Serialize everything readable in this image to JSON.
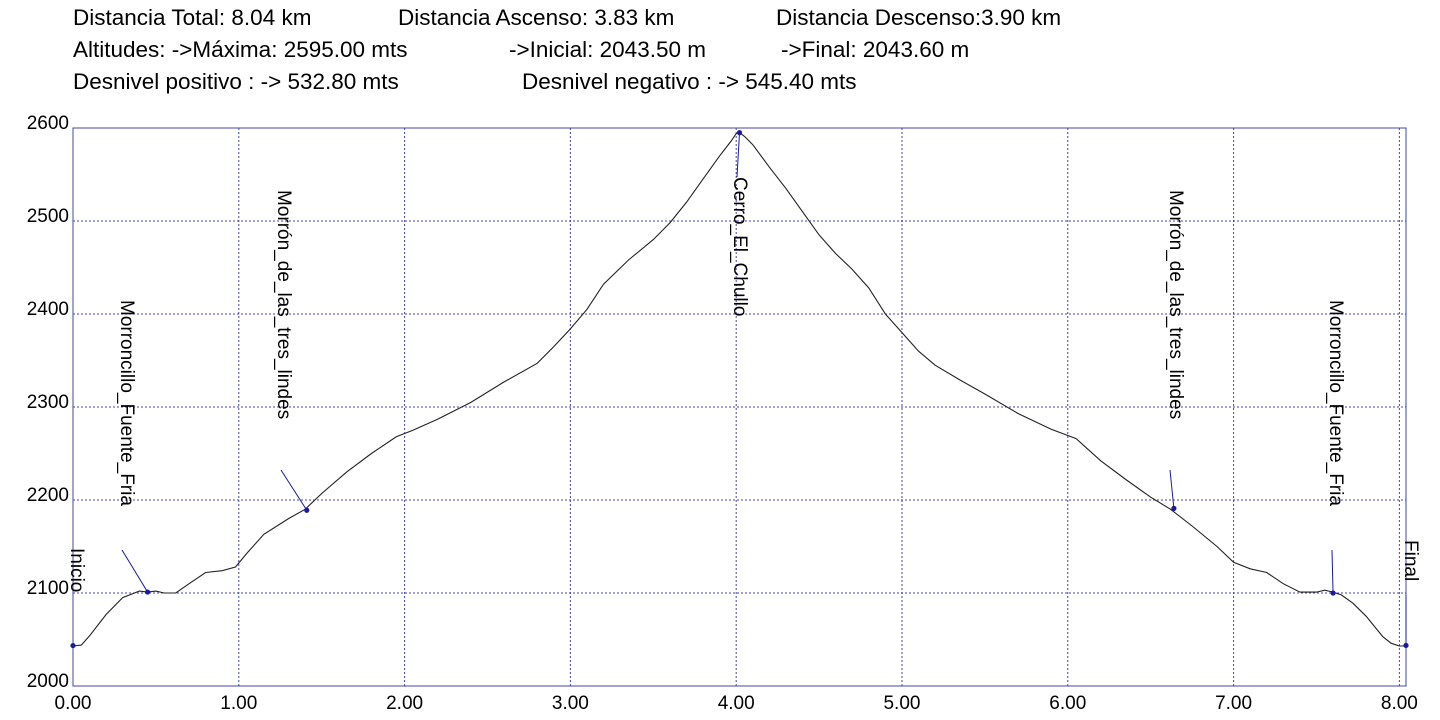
{
  "summary": {
    "line1": [
      "Distancia Total: 8.04 km",
      "Distancia Ascenso: 3.83 km",
      "Distancia Descenso:3.90 km"
    ],
    "line2": [
      "Altitudes: ->Máxima: 2595.00 mts",
      "->Inicial: 2043.50 m",
      "->Final: 2043.60 m"
    ],
    "line3": [
      "Desnivel positivo : -> 532.80 mts",
      "Desnivel negativo : -> 545.40 mts"
    ]
  },
  "colors": {
    "grid": "#4444aa",
    "axis": "#4444aa",
    "profile": "#222222",
    "marker": "#1a1aa0",
    "background": "#ffffff"
  },
  "chart_data": {
    "type": "line",
    "title": "",
    "xlabel": "",
    "ylabel": "",
    "xlim": [
      0,
      8.04
    ],
    "ylim": [
      2000,
      2600
    ],
    "grid": true,
    "xticks": [
      "0.00",
      "1.00",
      "2.00",
      "3.00",
      "4.00",
      "5.00",
      "6.00",
      "7.00",
      "8.00"
    ],
    "yticks": [
      "2000",
      "2100",
      "2200",
      "2300",
      "2400",
      "2500",
      "2600"
    ],
    "series": [
      {
        "x": [
          0.0,
          0.05,
          0.1,
          0.2,
          0.3,
          0.4,
          0.45,
          0.5,
          0.55,
          0.62,
          0.7,
          0.8,
          0.9,
          0.98,
          1.05,
          1.15,
          1.3,
          1.4,
          1.5,
          1.65,
          1.8,
          1.95,
          2.05,
          2.2,
          2.4,
          2.6,
          2.8,
          2.9,
          3.0,
          3.1,
          3.2,
          3.35,
          3.5,
          3.6,
          3.7,
          3.8,
          3.9,
          3.97,
          4.0,
          4.02,
          4.05,
          4.1,
          4.2,
          4.3,
          4.4,
          4.5,
          4.6,
          4.7,
          4.8,
          4.9,
          5.0,
          5.1,
          5.2,
          5.35,
          5.5,
          5.7,
          5.9,
          6.05,
          6.2,
          6.35,
          6.5,
          6.62,
          6.75,
          6.9,
          7.0,
          7.1,
          7.2,
          7.3,
          7.4,
          7.5,
          7.55,
          7.6,
          7.65,
          7.72,
          7.8,
          7.9,
          7.95,
          8.0,
          8.04
        ],
        "y": [
          2043,
          2044,
          2054,
          2077,
          2095,
          2102,
          2101,
          2102,
          2100,
          2100,
          2110,
          2122,
          2124,
          2128,
          2143,
          2163,
          2180,
          2190,
          2207,
          2230,
          2250,
          2268,
          2275,
          2287,
          2305,
          2327,
          2347,
          2365,
          2384,
          2405,
          2432,
          2458,
          2480,
          2498,
          2520,
          2545,
          2570,
          2586,
          2594,
          2595,
          2591,
          2582,
          2558,
          2535,
          2510,
          2485,
          2465,
          2448,
          2428,
          2400,
          2380,
          2360,
          2345,
          2329,
          2314,
          2293,
          2276,
          2266,
          2242,
          2222,
          2203,
          2190,
          2172,
          2150,
          2133,
          2126,
          2122,
          2110,
          2101,
          2101,
          2103,
          2101,
          2098,
          2089,
          2075,
          2053,
          2046,
          2043,
          2043
        ]
      }
    ],
    "waypoints": [
      {
        "name": "Inicio",
        "x": 0.0,
        "y": 2043.5
      },
      {
        "name": "Morroncillo_Fuente_Fria",
        "x": 0.45,
        "y": 2101
      },
      {
        "name": "Morrón_de_las_tres_lindes",
        "x": 1.41,
        "y": 2189
      },
      {
        "name": "Cerro_El_Chullo",
        "x": 4.02,
        "y": 2595
      },
      {
        "name": "Morrón_de_las_tres_lindes",
        "x": 6.64,
        "y": 2191
      },
      {
        "name": "Morroncillo_Fuente_Fria",
        "x": 7.6,
        "y": 2100
      },
      {
        "name": "Final",
        "x": 8.04,
        "y": 2043.6
      }
    ]
  }
}
